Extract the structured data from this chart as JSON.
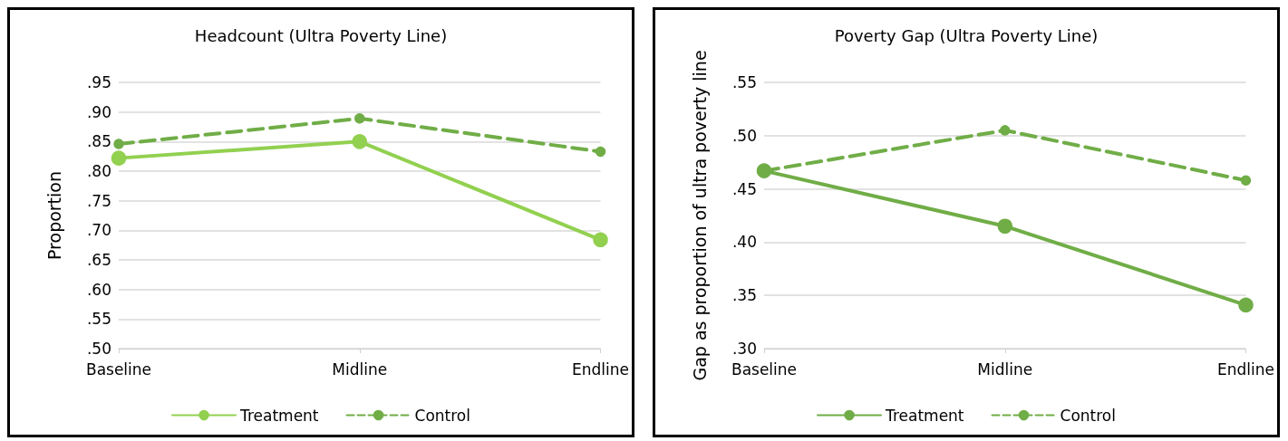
{
  "chart_data": [
    {
      "type": "line",
      "title": "Headcount (Ultra Poverty Line)",
      "ylabel": "Proportion",
      "categories": [
        "Baseline",
        "Midline",
        "Endline"
      ],
      "series": [
        {
          "name": "Treatment",
          "color": "#92d050",
          "line_style": "solid",
          "values": [
            0.822,
            0.85,
            0.684
          ]
        },
        {
          "name": "Control",
          "color": "#70ad47",
          "line_style": "dashed",
          "values": [
            0.846,
            0.889,
            0.833
          ]
        }
      ],
      "ylim": [
        0.5,
        0.95
      ],
      "yticks": [
        {
          "value": 0.5,
          "label": ".50"
        },
        {
          "value": 0.55,
          "label": ".55"
        },
        {
          "value": 0.6,
          "label": ".60"
        },
        {
          "value": 0.65,
          "label": ".65"
        },
        {
          "value": 0.7,
          "label": ".70"
        },
        {
          "value": 0.75,
          "label": ".75"
        },
        {
          "value": 0.8,
          "label": ".80"
        },
        {
          "value": 0.85,
          "label": ".85"
        },
        {
          "value": 0.9,
          "label": ".90"
        },
        {
          "value": 0.95,
          "label": ".95"
        }
      ],
      "grid": "y",
      "legend": "bottom",
      "marker": "circle"
    },
    {
      "type": "line",
      "title": "Poverty Gap (Ultra Poverty Line)",
      "ylabel": "Gap as proportion of ultra poverty line",
      "categories": [
        "Baseline",
        "Midline",
        "Endline"
      ],
      "series": [
        {
          "name": "Treatment",
          "color": "#70ad47",
          "line_style": "solid",
          "values": [
            0.467,
            0.415,
            0.341
          ]
        },
        {
          "name": "Control",
          "color": "#70ad47",
          "line_style": "dashed",
          "values": [
            0.467,
            0.505,
            0.458
          ]
        }
      ],
      "ylim": [
        0.3,
        0.55
      ],
      "yticks": [
        {
          "value": 0.3,
          "label": ".30"
        },
        {
          "value": 0.35,
          "label": ".35"
        },
        {
          "value": 0.4,
          "label": ".40"
        },
        {
          "value": 0.45,
          "label": ".45"
        },
        {
          "value": 0.5,
          "label": ".50"
        },
        {
          "value": 0.55,
          "label": ".55"
        }
      ],
      "grid": "y",
      "legend": "bottom",
      "marker": "circle"
    }
  ]
}
